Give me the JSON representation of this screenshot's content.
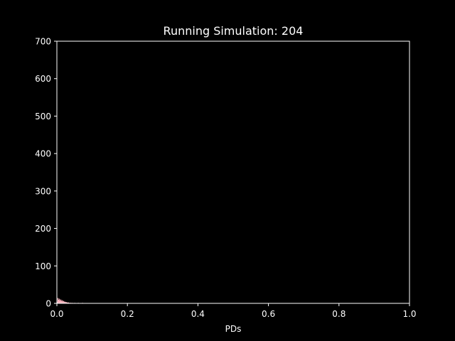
{
  "chart_data": {
    "type": "bar",
    "title": "Running Simulation: 204",
    "xlabel": "PDs",
    "ylabel": "",
    "xlim": [
      0.0,
      1.0
    ],
    "ylim": [
      0,
      700
    ],
    "x_ticks": [
      "0.0",
      "0.2",
      "0.4",
      "0.6",
      "0.8",
      "1.0"
    ],
    "y_ticks": [
      "0",
      "100",
      "200",
      "300",
      "400",
      "500",
      "600",
      "700"
    ],
    "bin_width": 0.002,
    "bins": [
      {
        "x": 0.0,
        "value": 4
      },
      {
        "x": 0.002,
        "value": 14
      },
      {
        "x": 0.004,
        "value": 9
      },
      {
        "x": 0.006,
        "value": 12
      },
      {
        "x": 0.008,
        "value": 7
      },
      {
        "x": 0.01,
        "value": 10
      },
      {
        "x": 0.012,
        "value": 6
      },
      {
        "x": 0.014,
        "value": 8
      },
      {
        "x": 0.016,
        "value": 5
      },
      {
        "x": 0.018,
        "value": 6
      },
      {
        "x": 0.02,
        "value": 4
      },
      {
        "x": 0.022,
        "value": 4
      },
      {
        "x": 0.024,
        "value": 3
      },
      {
        "x": 0.026,
        "value": 3
      },
      {
        "x": 0.028,
        "value": 2
      },
      {
        "x": 0.03,
        "value": 2
      },
      {
        "x": 0.032,
        "value": 2
      },
      {
        "x": 0.034,
        "value": 1
      },
      {
        "x": 0.036,
        "value": 1
      },
      {
        "x": 0.038,
        "value": 1
      },
      {
        "x": 0.04,
        "value": 1
      },
      {
        "x": 0.044,
        "value": 1
      },
      {
        "x": 0.05,
        "value": 1
      },
      {
        "x": 0.06,
        "value": 1
      },
      {
        "x": 0.072,
        "value": 1
      }
    ],
    "bar_color": "#ffb6c1",
    "background": "#000000",
    "foreground": "#ffffff",
    "grid": false,
    "legend": "none"
  }
}
